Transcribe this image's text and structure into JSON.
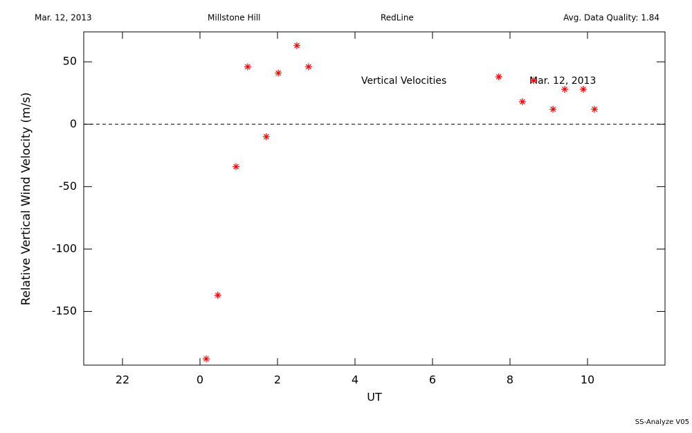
{
  "chart_data": {
    "type": "scatter",
    "header": [
      "Mar. 12, 2013",
      "Millstone Hill",
      "RedLine",
      "Avg. Data Quality: 1.84"
    ],
    "annotations": [
      "Vertical Velocities",
      "Mar. 12, 2013"
    ],
    "footer": "SS-Analyze V05",
    "x_label": "UT",
    "y_label": "Relative Vertical Wind Velocity (m/s)",
    "xlim": [
      -3,
      12
    ],
    "xticks": [
      {
        "value": -2,
        "label": "22"
      },
      0,
      2,
      4,
      6,
      8,
      10
    ],
    "ylim": [
      -193,
      74
    ],
    "yticks": [
      -150,
      -100,
      -50,
      0,
      50
    ],
    "reference_line": 0,
    "series": [
      {
        "color": "#ff0000",
        "x": [
          0.16,
          0.46,
          0.93,
          1.23,
          1.71,
          2.02,
          2.5,
          2.8,
          7.71,
          8.32,
          8.61,
          9.11,
          9.41,
          9.89,
          10.18
        ],
        "values": [
          -188,
          -137,
          -34,
          46,
          -10,
          41,
          63,
          46,
          38,
          18,
          35,
          12,
          28,
          28,
          12
        ]
      }
    ]
  }
}
